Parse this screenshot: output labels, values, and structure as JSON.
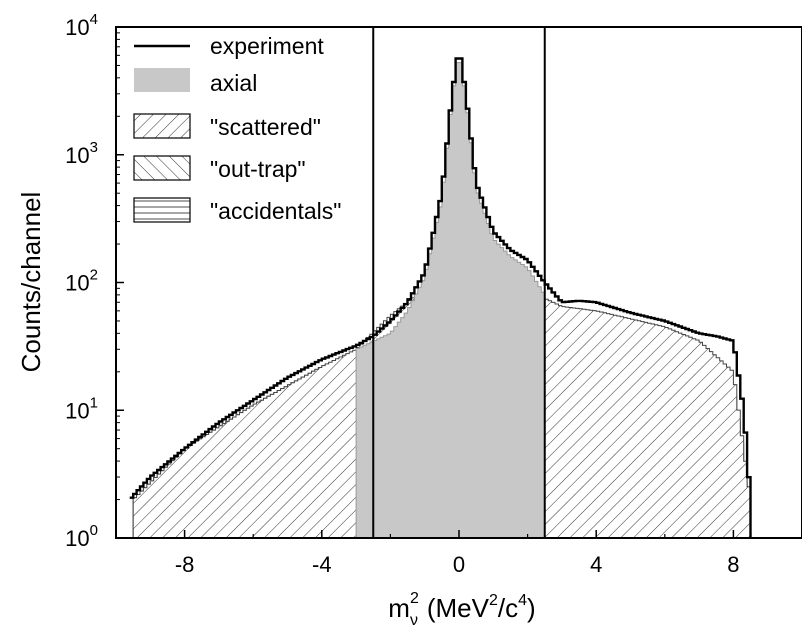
{
  "chart_data": {
    "type": "histogram",
    "xlabel_main": "m",
    "xlabel_sub": "ν",
    "xlabel_sup": "2",
    "xlabel_rest": "(MeV",
    "xlabel_sup2": "2",
    "xlabel_end": "/c",
    "xlabel_sup3": "4",
    "xlabel_close": ")",
    "ylabel": "Counts/channel",
    "xlim": [
      -10,
      10
    ],
    "ylim": [
      1,
      10000
    ],
    "y_scale": "log",
    "x_ticks": [
      -8,
      -4,
      0,
      4,
      8
    ],
    "x_tick_labels": [
      "-8",
      "-4",
      "0",
      "4",
      "8"
    ],
    "y_ticks": [
      1,
      10,
      100,
      1000,
      10000
    ],
    "y_tick_base": "10",
    "y_tick_exps": [
      "0",
      "1",
      "2",
      "3",
      "4"
    ],
    "vertical_lines": [
      -2.5,
      2.5
    ],
    "legend_position": "top-left",
    "legend": [
      {
        "label": "experiment",
        "style": "line"
      },
      {
        "label": "axial",
        "style": "gray-fill"
      },
      {
        "label": "\"scattered\"",
        "style": "hatch-forward"
      },
      {
        "label": "\"out-trap\"",
        "style": "hatch-back"
      },
      {
        "label": "\"accidentals\"",
        "style": "hatch-horizontal"
      }
    ],
    "series": [
      {
        "name": "experiment",
        "x": [
          -9.6,
          -9,
          -8,
          -7,
          -6,
          -5,
          -4,
          -3,
          -2.5,
          -2,
          -1.5,
          -1,
          -0.5,
          -0.2,
          0,
          0.2,
          0.5,
          1,
          1.5,
          2,
          2.5,
          3,
          3.5,
          4,
          5,
          6,
          7,
          7.5,
          8,
          8.3,
          8.5
        ],
        "y": [
          2,
          3,
          5,
          8,
          12,
          18,
          25,
          32,
          38,
          50,
          70,
          120,
          500,
          3000,
          7000,
          3000,
          600,
          250,
          180,
          150,
          100,
          70,
          72,
          70,
          58,
          50,
          40,
          38,
          35,
          10,
          2
        ]
      },
      {
        "name": "axial",
        "x": [
          -3,
          -2,
          -1.5,
          -1,
          -0.5,
          -0.2,
          0,
          0.2,
          0.5,
          1,
          1.5,
          2,
          2.5
        ],
        "y": [
          30,
          40,
          60,
          110,
          450,
          2800,
          6500,
          2800,
          550,
          220,
          160,
          130,
          80
        ]
      },
      {
        "name": "\"scattered\"",
        "x": [
          -9.5,
          -8,
          -6,
          -4,
          -3,
          -2,
          -1,
          0,
          1,
          2,
          2.5,
          3,
          4,
          5,
          6,
          7,
          8,
          8.5
        ],
        "y": [
          2,
          5,
          11,
          22,
          30,
          55,
          90,
          130,
          110,
          90,
          75,
          65,
          60,
          52,
          45,
          35,
          20,
          2
        ]
      },
      {
        "name": "\"out-trap\"",
        "x": [
          -9.5,
          -8,
          -6,
          -4,
          -3,
          -2,
          -1,
          0,
          1,
          2,
          2.5,
          3,
          4,
          5,
          6,
          7,
          8,
          8.5
        ],
        "y": [
          2,
          5,
          11,
          22,
          28,
          38,
          50,
          60,
          52,
          45,
          42,
          40,
          38,
          35,
          30,
          25,
          15,
          2
        ]
      },
      {
        "name": "\"accidentals\"",
        "x": [
          -9.5,
          -8,
          -6,
          -4,
          -3,
          -2,
          -1,
          0,
          1,
          2,
          3,
          4,
          5,
          6,
          7,
          7.5,
          8,
          8.3,
          8.5
        ],
        "y": [
          2,
          4,
          9,
          18,
          25,
          28,
          30,
          31,
          31,
          30,
          29,
          28,
          26,
          23,
          19,
          15,
          8,
          3,
          2
        ]
      }
    ]
  }
}
